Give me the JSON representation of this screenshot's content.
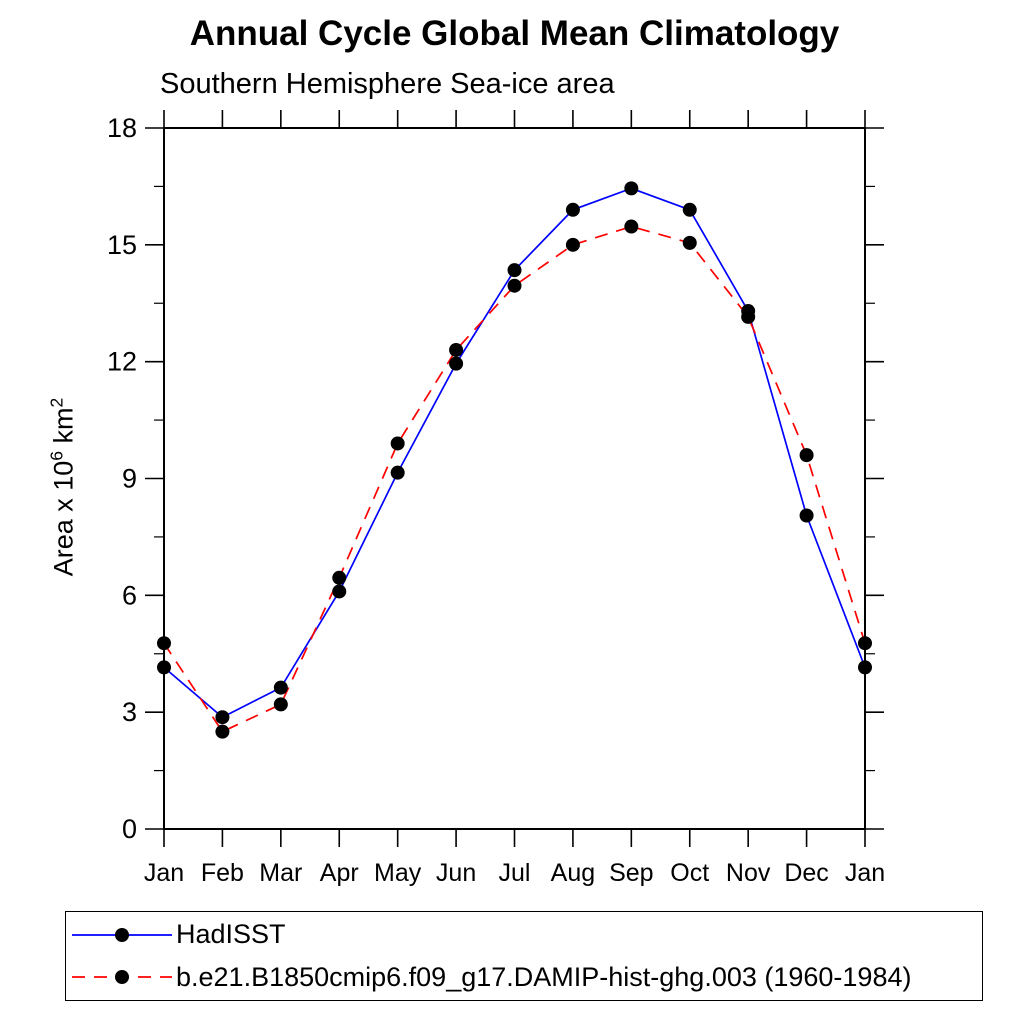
{
  "chart_data": {
    "type": "line",
    "title": "Annual Cycle Global Mean Climatology",
    "subtitle": "Southern Hemisphere Sea-ice area",
    "ylabel": {
      "base1": "Area x 10",
      "sup1": "6",
      "base2": " km",
      "sup2": "2"
    },
    "categories": [
      "Jan",
      "Feb",
      "Mar",
      "Apr",
      "May",
      "Jun",
      "Jul",
      "Aug",
      "Sep",
      "Oct",
      "Nov",
      "Dec",
      "Jan"
    ],
    "ylim": [
      0,
      18
    ],
    "yticks_major": [
      0,
      3,
      6,
      9,
      12,
      15,
      18
    ],
    "yticks_minor_interval": 1.5,
    "grid": false,
    "legend_position": "bottom-left-box",
    "marker": {
      "shape": "circle",
      "color": "#000000",
      "radius": 7
    },
    "series": [
      {
        "name": "HadISST",
        "color": "#0000ff",
        "dash": "solid",
        "values": [
          4.15,
          2.87,
          3.63,
          6.1,
          9.15,
          11.95,
          14.35,
          15.9,
          16.45,
          15.9,
          13.3,
          8.05,
          4.15
        ]
      },
      {
        "name": "b.e21.B1850cmip6.f09_g17.DAMIP-hist-ghg.003 (1960-1984)",
        "color": "#ff0000",
        "dash": "dashed",
        "values": [
          4.77,
          2.5,
          3.2,
          6.45,
          9.9,
          12.3,
          13.95,
          15.0,
          15.47,
          15.05,
          13.15,
          9.6,
          4.77
        ]
      }
    ]
  }
}
